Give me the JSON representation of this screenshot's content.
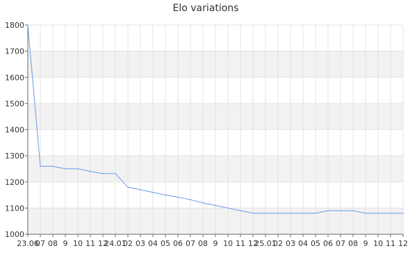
{
  "chart_data": {
    "type": "line",
    "title": "Elo variations",
    "xlabel": "",
    "ylabel": "",
    "ylim": [
      1000,
      1800
    ],
    "yticks": [
      1000,
      1100,
      1200,
      1300,
      1400,
      1500,
      1600,
      1700,
      1800
    ],
    "grid": true,
    "x_tick_labels": [
      "23.06",
      "07",
      "08",
      "9",
      "10",
      "11",
      "12",
      "24.01",
      "02",
      "03",
      "04",
      "05",
      "06",
      "07",
      "08",
      "9",
      "10",
      "11",
      "12",
      "25.01",
      "02",
      "03",
      "04",
      "05",
      "06",
      "07",
      "08",
      "9",
      "10",
      "11",
      "12"
    ],
    "series": [
      {
        "color": "#6a9ae6",
        "values": [
          1800,
          1260,
          1260,
          1250,
          1250,
          1240,
          1232,
          1232,
          1180,
          1170,
          1160,
          1150,
          1142,
          1132,
          1120,
          1110,
          1100,
          1090,
          1080,
          1080,
          1080,
          1080,
          1080,
          1080,
          1090,
          1090,
          1090,
          1080,
          1080,
          1080,
          1080
        ]
      }
    ],
    "colors": {
      "band": "#f2f2f2",
      "grid": "#e3e3e3",
      "axis": "#666666"
    }
  }
}
